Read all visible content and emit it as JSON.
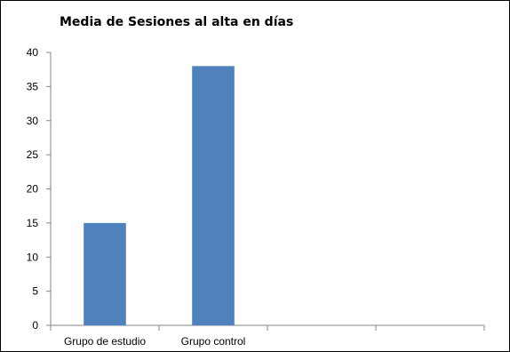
{
  "chart_data": {
    "type": "bar",
    "title": "Media de Sesiones al alta en días",
    "categories": [
      "Grupo de estudio",
      "Grupo control",
      "",
      ""
    ],
    "values": [
      15,
      38,
      null,
      null
    ],
    "xlabel": "",
    "ylabel": "",
    "ylim": [
      0,
      40
    ],
    "yticks": [
      0,
      5,
      10,
      15,
      20,
      25,
      30,
      35,
      40
    ],
    "grid": false,
    "legend": "none",
    "bar_color": "#4F81BD"
  }
}
